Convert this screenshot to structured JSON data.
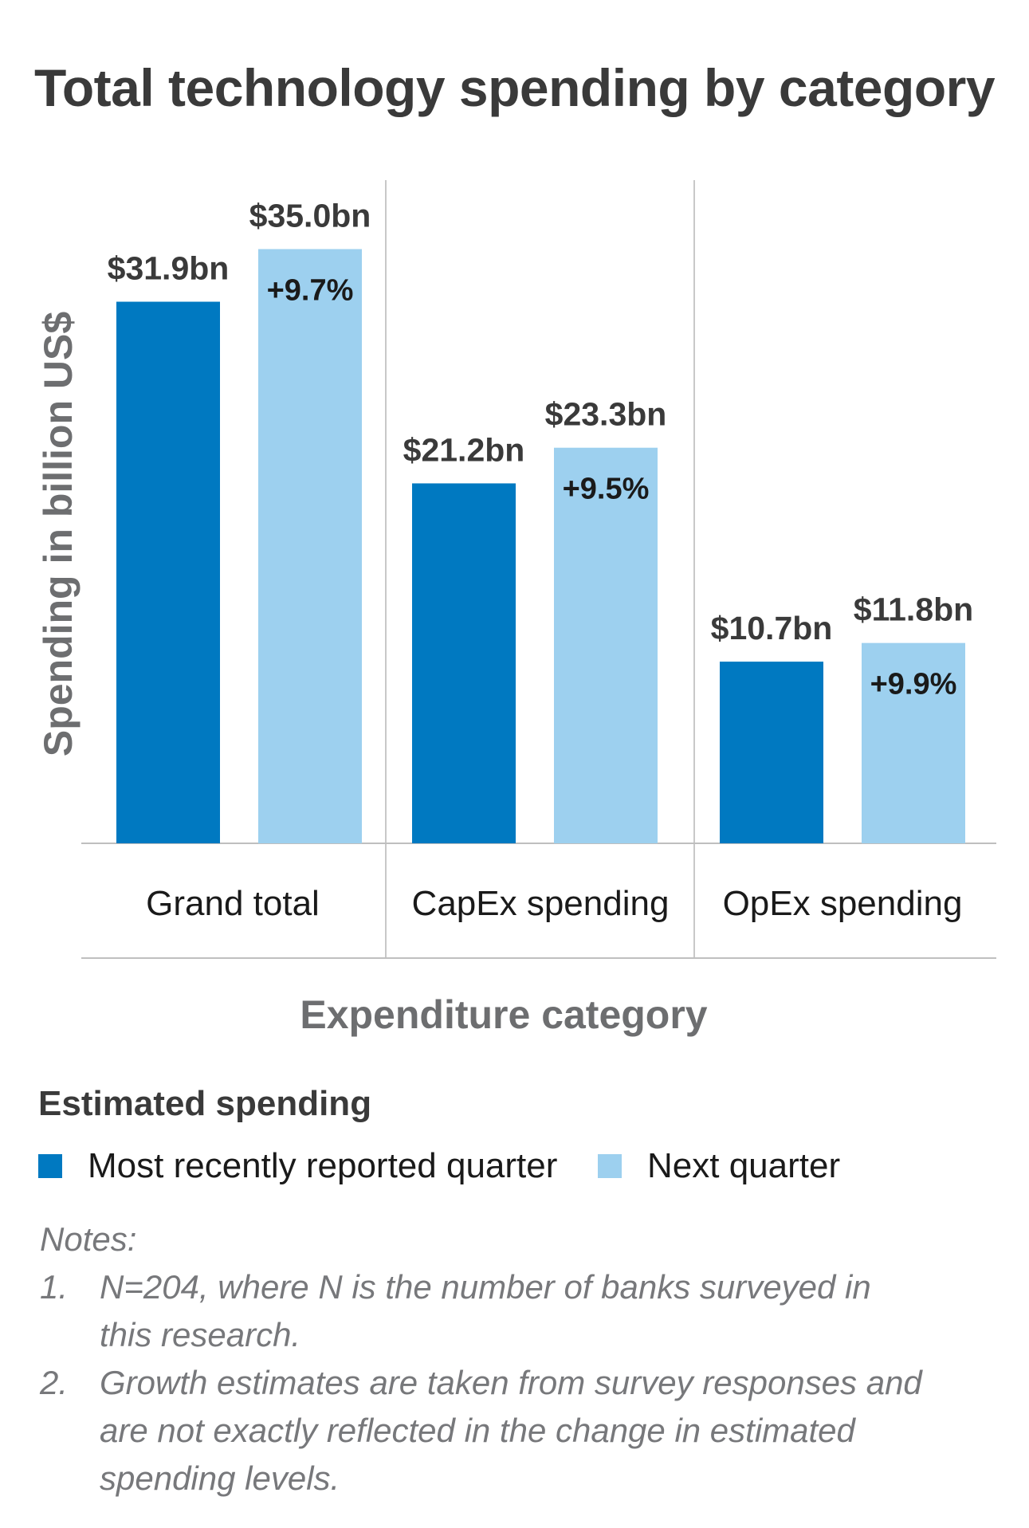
{
  "chart_data": {
    "type": "bar",
    "title": "Total technology spending by category",
    "xlabel": "Expenditure category",
    "ylabel": "Spending in billion US$",
    "categories": [
      "Grand total",
      "CapEx spending",
      "OpEx spending"
    ],
    "series": [
      {
        "name": "Most recently reported quarter",
        "color": "#0079c1",
        "values": [
          31.9,
          21.2,
          10.7
        ],
        "labels": [
          "$31.9bn",
          "$21.2bn",
          "$10.7bn"
        ]
      },
      {
        "name": "Next quarter",
        "color": "#9dd0ef",
        "values": [
          35.0,
          23.3,
          11.8
        ],
        "labels": [
          "$35.0bn",
          "$23.3bn",
          "$11.8bn"
        ],
        "growth_labels": [
          "+9.7%",
          "+9.5%",
          "+9.9%"
        ]
      }
    ],
    "ylim": [
      0,
      40
    ],
    "legend_title": "Estimated spending",
    "legend_position": "bottom"
  },
  "notes": {
    "heading": "Notes:",
    "items": [
      {
        "num": "1.",
        "lines": [
          "N=204, where N is the number of banks surveyed in",
          "this research."
        ]
      },
      {
        "num": "2.",
        "lines": [
          "Growth estimates are taken from survey responses and",
          "are not exactly reflected in the change in estimated",
          "spending levels."
        ]
      }
    ]
  }
}
